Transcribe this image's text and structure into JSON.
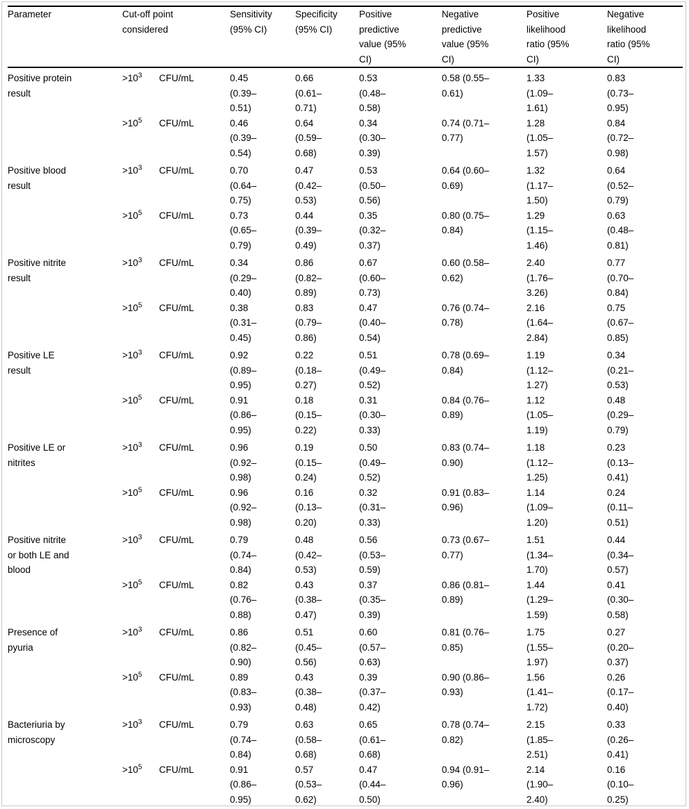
{
  "table": {
    "headers": [
      "Parameter",
      "Cut-off point\nconsidered",
      "Sensitivity\n(95% CI)",
      "Specificity\n(95% CI)",
      "Positive\npredictive\nvalue (95%\nCI)",
      "Negative\npredictive\nvalue (95%\nCI)",
      "Positive\nlikelihood\nratio (95%\nCI)",
      "Negative\nlikelihood\nratio (95%\nCI)"
    ],
    "rows": [
      {
        "parameter": "Positive protein\nresult",
        "cutoffs": [
          {
            "threshold": ">10",
            "exponent": "3",
            "unit": "CFU/mL",
            "sensitivity": "0.45\n(0.39–\n0.51)",
            "specificity": "0.66\n(0.61–\n0.71)",
            "ppv": "0.53\n(0.48–\n0.58)",
            "npv": "0.58 (0.55–\n0.61)",
            "plr": "1.33\n(1.09–\n1.61)",
            "nlr": "0.83\n(0.73–\n0.95)"
          },
          {
            "threshold": ">10",
            "exponent": "5",
            "unit": "CFU/mL",
            "sensitivity": "0.46\n(0.39–\n0.54)",
            "specificity": "0.64\n(0.59–\n0.68)",
            "ppv": "0.34\n(0.30–\n0.39)",
            "npv": "0.74 (0.71–\n0.77)",
            "plr": "1.28\n(1.05–\n1.57)",
            "nlr": "0.84\n(0.72–\n0.98)"
          }
        ]
      },
      {
        "parameter": "Positive blood\nresult",
        "cutoffs": [
          {
            "threshold": ">10",
            "exponent": "3",
            "unit": "CFU/mL",
            "sensitivity": "0.70\n(0.64–\n0.75)",
            "specificity": "0.47\n(0.42–\n0.53)",
            "ppv": "0.53\n(0.50–\n0.56)",
            "npv": "0.64 (0.60–\n0.69)",
            "plr": "1.32\n(1.17–\n1.50)",
            "nlr": "0.64\n(0.52–\n0.79)"
          },
          {
            "threshold": ">10",
            "exponent": "5",
            "unit": "CFU/mL",
            "sensitivity": "0.73\n(0.65–\n0.79)",
            "specificity": "0.44\n(0.39–\n0.49)",
            "ppv": "0.35\n(0.32–\n0.37)",
            "npv": "0.80 (0.75–\n0.84)",
            "plr": "1.29\n(1.15–\n1.46)",
            "nlr": "0.63\n(0.48–\n0.81)"
          }
        ]
      },
      {
        "parameter": "Positive nitrite\nresult",
        "cutoffs": [
          {
            "threshold": ">10",
            "exponent": "3",
            "unit": "CFU/mL",
            "sensitivity": "0.34\n(0.29–\n0.40)",
            "specificity": "0.86\n(0.82–\n0.89)",
            "ppv": "0.67\n(0.60–\n0.73)",
            "npv": "0.60 (0.58–\n0.62)",
            "plr": "2.40\n(1.76–\n3.26)",
            "nlr": "0.77\n(0.70–\n0.84)"
          },
          {
            "threshold": ">10",
            "exponent": "5",
            "unit": "CFU/mL",
            "sensitivity": "0.38\n(0.31–\n0.45)",
            "specificity": "0.83\n(0.79–\n0.86)",
            "ppv": "0.47\n(0.40–\n0.54)",
            "npv": "0.76 (0.74–\n0.78)",
            "plr": "2.16\n(1.64–\n2.84)",
            "nlr": "0.75\n(0.67–\n0.85)"
          }
        ]
      },
      {
        "parameter": "Positive LE\nresult",
        "cutoffs": [
          {
            "threshold": ">10",
            "exponent": "3",
            "unit": "CFU/mL",
            "sensitivity": "0.92\n(0.89–\n0.95)",
            "specificity": "0.22\n(0.18–\n0.27)",
            "ppv": "0.51\n(0.49–\n0.52)",
            "npv": "0.78 (0.69–\n0.84)",
            "plr": "1.19\n(1.12–\n1.27)",
            "nlr": "0.34\n(0.21–\n0.53)"
          },
          {
            "threshold": ">10",
            "exponent": "5",
            "unit": "CFU/mL",
            "sensitivity": "0.91\n(0.86–\n0.95)",
            "specificity": "0.18\n(0.15–\n0.22)",
            "ppv": "0.31\n(0.30–\n0.33)",
            "npv": "0.84 (0.76–\n0.89)",
            "plr": "1.12\n(1.05–\n1.19)",
            "nlr": "0.48\n(0.29–\n0.79)"
          }
        ]
      },
      {
        "parameter": "Positive LE or\nnitrites",
        "cutoffs": [
          {
            "threshold": ">10",
            "exponent": "3",
            "unit": "CFU/mL",
            "sensitivity": "0.96\n(0.92–\n0.98)",
            "specificity": "0.19\n(0.15–\n0.24)",
            "ppv": "0.50\n(0.49–\n0.52)",
            "npv": "0.83 (0.74–\n0.90)",
            "plr": "1.18\n(1.12–\n1.25)",
            "nlr": "0.23\n(0.13–\n0.41)"
          },
          {
            "threshold": ">10",
            "exponent": "5",
            "unit": "CFU/mL",
            "sensitivity": "0.96\n(0.92–\n0.98)",
            "specificity": "0.16\n(0.13–\n0.20)",
            "ppv": "0.32\n(0.31–\n0.33)",
            "npv": "0.91 (0.83–\n0.96)",
            "plr": "1.14\n(1.09–\n1.20)",
            "nlr": "0.24\n(0.11–\n0.51)"
          }
        ]
      },
      {
        "parameter": "Positive nitrite\nor both LE and\nblood",
        "cutoffs": [
          {
            "threshold": ">10",
            "exponent": "3",
            "unit": "CFU/mL",
            "sensitivity": "0.79\n(0.74–\n0.84)",
            "specificity": "0.48\n(0.42–\n0.53)",
            "ppv": "0.56\n(0.53–\n0.59)",
            "npv": "0.73 (0.67–\n0.77)",
            "plr": "1.51\n(1.34–\n1.70)",
            "nlr": "0.44\n(0.34–\n0.57)"
          },
          {
            "threshold": ">10",
            "exponent": "5",
            "unit": "CFU/mL",
            "sensitivity": "0.82\n(0.76–\n0.88)",
            "specificity": "0.43\n(0.38–\n0.47)",
            "ppv": "0.37\n(0.35–\n0.39)",
            "npv": "0.86 (0.81–\n0.89)",
            "plr": "1.44\n(1.29–\n1.59)",
            "nlr": "0.41\n(0.30–\n0.58)"
          }
        ]
      },
      {
        "parameter": "Presence of\npyuria",
        "cutoffs": [
          {
            "threshold": ">10",
            "exponent": "3",
            "unit": "CFU/mL",
            "sensitivity": "0.86\n(0.82–\n0.90)",
            "specificity": "0.51\n(0.45–\n0.56)",
            "ppv": "0.60\n(0.57–\n0.63)",
            "npv": "0.81 (0.76–\n0.85)",
            "plr": "1.75\n(1.55–\n1.97)",
            "nlr": "0.27\n(0.20–\n0.37)"
          },
          {
            "threshold": ">10",
            "exponent": "5",
            "unit": "CFU/mL",
            "sensitivity": "0.89\n(0.83–\n0.93)",
            "specificity": "0.43\n(0.38–\n0.48)",
            "ppv": "0.39\n(0.37–\n0.42)",
            "npv": "0.90 (0.86–\n0.93)",
            "plr": "1.56\n(1.41–\n1.72)",
            "nlr": "0.26\n(0.17–\n0.40)"
          }
        ]
      },
      {
        "parameter": "Bacteriuria by\nmicroscopy",
        "cutoffs": [
          {
            "threshold": ">10",
            "exponent": "3",
            "unit": "CFU/mL",
            "sensitivity": "0.79\n(0.74–\n0.84)",
            "specificity": "0.63\n(0.58–\n0.68)",
            "ppv": "0.65\n(0.61–\n0.68)",
            "npv": "0.78 (0.74–\n0.82)",
            "plr": "2.15\n(1.85–\n2.51)",
            "nlr": "0.33\n(0.26–\n0.41)"
          },
          {
            "threshold": ">10",
            "exponent": "5",
            "unit": "CFU/mL",
            "sensitivity": "0.91\n(0.86–\n0.95)",
            "specificity": "0.57\n(0.53–\n0.62)",
            "ppv": "0.47\n(0.44–\n0.50)",
            "npv": "0.94 (0.91–\n0.96)",
            "plr": "2.14\n(1.90–\n2.40)",
            "nlr": "0.16\n(0.10–\n0.25)"
          }
        ]
      }
    ]
  }
}
